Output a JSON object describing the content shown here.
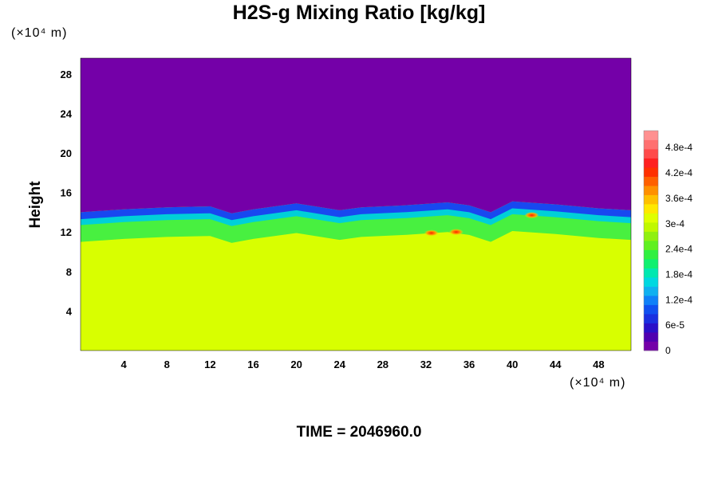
{
  "chart_data": {
    "type": "heatmap",
    "title": "H2S-g Mixing Ratio [kg/kg]",
    "ylabel": "Height",
    "x_unit": "(×10⁴ m)",
    "y_unit": "(×10⁴ m)",
    "time_label": "TIME = 2046960.0",
    "xlim": [
      0,
      51
    ],
    "ylim": [
      0,
      29.6
    ],
    "x_ticks": [
      "4",
      "8",
      "12",
      "16",
      "20",
      "24",
      "28",
      "32",
      "36",
      "40",
      "44",
      "48"
    ],
    "x_tick_values": [
      4,
      8,
      12,
      16,
      20,
      24,
      28,
      32,
      36,
      40,
      44,
      48
    ],
    "y_ticks": [
      "4",
      "8",
      "12",
      "16",
      "20",
      "24",
      "28"
    ],
    "y_tick_values": [
      4,
      8,
      12,
      16,
      20,
      24,
      28
    ],
    "colorbar": {
      "min": 0,
      "max": 0.00052,
      "labels": [
        "0",
        "6e-5",
        "1.2e-4",
        "1.8e-4",
        "2.4e-4",
        "3e-4",
        "3.6e-4",
        "4.2e-4",
        "4.8e-4"
      ],
      "label_values": [
        0,
        6e-05,
        0.00012,
        0.00018,
        0.00024,
        0.0003,
        0.00036,
        0.00042,
        0.00048
      ]
    },
    "field": {
      "lower_value": 0.00035,
      "upper_value": 0,
      "transition_height_profile": [
        {
          "x": 0,
          "z": 13.6
        },
        {
          "x": 4,
          "z": 13.9
        },
        {
          "x": 8,
          "z": 14.1
        },
        {
          "x": 12,
          "z": 14.2
        },
        {
          "x": 14,
          "z": 13.5
        },
        {
          "x": 16,
          "z": 13.9
        },
        {
          "x": 20,
          "z": 14.5
        },
        {
          "x": 24,
          "z": 13.8
        },
        {
          "x": 26,
          "z": 14.1
        },
        {
          "x": 30,
          "z": 14.3
        },
        {
          "x": 34,
          "z": 14.6
        },
        {
          "x": 36,
          "z": 14.3
        },
        {
          "x": 38,
          "z": 13.6
        },
        {
          "x": 40,
          "z": 14.7
        },
        {
          "x": 44,
          "z": 14.4
        },
        {
          "x": 48,
          "z": 14.0
        },
        {
          "x": 51,
          "z": 13.8
        }
      ],
      "hotspots": [
        {
          "x": 32.5,
          "z": 11.9,
          "value": 0.00044
        },
        {
          "x": 34.8,
          "z": 12.0,
          "value": 0.0004
        },
        {
          "x": 41.8,
          "z": 13.7,
          "value": 0.00038
        }
      ]
    }
  }
}
